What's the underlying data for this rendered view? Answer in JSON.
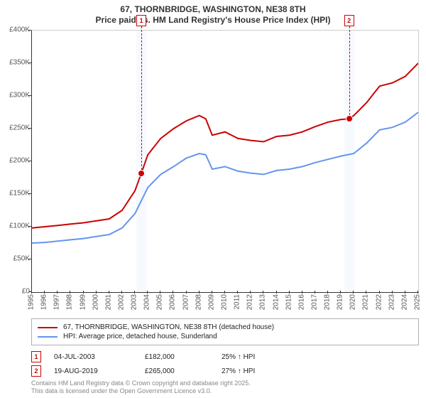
{
  "title_line1": "67, THORNBRIDGE, WASHINGTON, NE38 8TH",
  "title_line2": "Price paid vs. HM Land Registry's House Price Index (HPI)",
  "chart": {
    "background_color": "#ffffff",
    "shade_color": "rgba(100,149,237,0.06)",
    "yaxis": {
      "min": 0,
      "max": 400000,
      "step": 50000,
      "labels": [
        "£0",
        "£50K",
        "£100K",
        "£150K",
        "£200K",
        "£250K",
        "£300K",
        "£350K",
        "£400K"
      ],
      "label_fontsize": 10,
      "tick_color": "#333"
    },
    "xaxis": {
      "min": 1995,
      "max": 2025,
      "labels": [
        "1995",
        "1996",
        "1997",
        "1998",
        "1999",
        "2000",
        "2001",
        "2002",
        "2003",
        "2004",
        "2005",
        "2006",
        "2007",
        "2008",
        "2009",
        "2010",
        "2011",
        "2012",
        "2013",
        "2014",
        "2015",
        "2016",
        "2017",
        "2018",
        "2019",
        "2020",
        "2021",
        "2022",
        "2023",
        "2024",
        "2025"
      ],
      "label_fontsize": 10
    },
    "series": [
      {
        "id": "subject",
        "label": "67, THORNBRIDGE, WASHINGTON, NE38 8TH (detached house)",
        "color": "#cc0000",
        "line_width": 2,
        "points": [
          [
            1995,
            98000
          ],
          [
            1996,
            100000
          ],
          [
            1997,
            102000
          ],
          [
            1998,
            104000
          ],
          [
            1999,
            106000
          ],
          [
            2000,
            109000
          ],
          [
            2001,
            112000
          ],
          [
            2002,
            125000
          ],
          [
            2003,
            155000
          ],
          [
            2003.5,
            182000
          ],
          [
            2004,
            210000
          ],
          [
            2005,
            235000
          ],
          [
            2006,
            250000
          ],
          [
            2007,
            262000
          ],
          [
            2008,
            270000
          ],
          [
            2008.5,
            265000
          ],
          [
            2009,
            240000
          ],
          [
            2010,
            245000
          ],
          [
            2011,
            235000
          ],
          [
            2012,
            232000
          ],
          [
            2013,
            230000
          ],
          [
            2014,
            238000
          ],
          [
            2015,
            240000
          ],
          [
            2016,
            245000
          ],
          [
            2017,
            253000
          ],
          [
            2018,
            260000
          ],
          [
            2019,
            264000
          ],
          [
            2019.63,
            265000
          ],
          [
            2020,
            270000
          ],
          [
            2021,
            290000
          ],
          [
            2022,
            315000
          ],
          [
            2023,
            320000
          ],
          [
            2024,
            330000
          ],
          [
            2024.5,
            340000
          ],
          [
            2025,
            350000
          ]
        ]
      },
      {
        "id": "hpi",
        "label": "HPI: Average price, detached house, Sunderland",
        "color": "#6495ed",
        "line_width": 2,
        "points": [
          [
            1995,
            75000
          ],
          [
            1996,
            76000
          ],
          [
            1997,
            78000
          ],
          [
            1998,
            80000
          ],
          [
            1999,
            82000
          ],
          [
            2000,
            85000
          ],
          [
            2001,
            88000
          ],
          [
            2002,
            98000
          ],
          [
            2003,
            120000
          ],
          [
            2004,
            160000
          ],
          [
            2005,
            180000
          ],
          [
            2006,
            192000
          ],
          [
            2007,
            205000
          ],
          [
            2008,
            212000
          ],
          [
            2008.5,
            210000
          ],
          [
            2009,
            188000
          ],
          [
            2010,
            192000
          ],
          [
            2011,
            185000
          ],
          [
            2012,
            182000
          ],
          [
            2013,
            180000
          ],
          [
            2014,
            186000
          ],
          [
            2015,
            188000
          ],
          [
            2016,
            192000
          ],
          [
            2017,
            198000
          ],
          [
            2018,
            203000
          ],
          [
            2019,
            208000
          ],
          [
            2020,
            212000
          ],
          [
            2021,
            228000
          ],
          [
            2022,
            248000
          ],
          [
            2023,
            252000
          ],
          [
            2024,
            260000
          ],
          [
            2025,
            275000
          ]
        ]
      }
    ],
    "markers": [
      {
        "id": "1",
        "year": 2003.5,
        "value": 182000
      },
      {
        "id": "2",
        "year": 2019.63,
        "value": 265000
      }
    ]
  },
  "legend": {
    "border_color": "#b0b0b0",
    "items": [
      {
        "swatch_color": "#cc0000",
        "text": "67, THORNBRIDGE, WASHINGTON, NE38 8TH (detached house)"
      },
      {
        "swatch_color": "#6495ed",
        "text": "HPI: Average price, detached house, Sunderland"
      }
    ]
  },
  "transactions": [
    {
      "marker": "1",
      "date": "04-JUL-2003",
      "price": "£182,000",
      "pct": "25% ↑ HPI"
    },
    {
      "marker": "2",
      "date": "19-AUG-2019",
      "price": "£265,000",
      "pct": "27% ↑ HPI"
    }
  ],
  "footer_line1": "Contains HM Land Registry data © Crown copyright and database right 2025.",
  "footer_line2": "This data is licensed under the Open Government Licence v3.0."
}
